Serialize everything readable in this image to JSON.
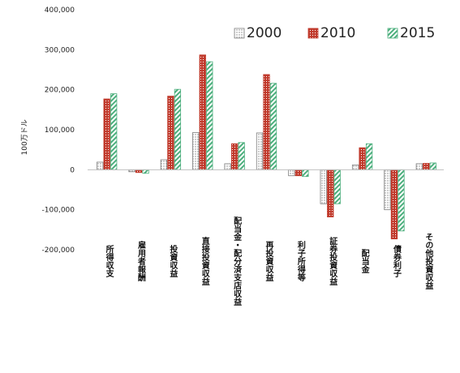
{
  "chart_data": {
    "type": "bar",
    "ylabel": "100万ドル",
    "ylim": [
      -200000,
      400000
    ],
    "y_ticks": [
      "400,000",
      "300,000",
      "200,000",
      "100,000",
      "0",
      "-100,000",
      "-200,000"
    ],
    "y_tick_values": [
      400000,
      300000,
      200000,
      100000,
      0,
      -100000,
      -200000
    ],
    "grid": false,
    "legend_position": "top-right",
    "categories": [
      "所得収支",
      "雇用者報酬",
      "投資収益",
      "直接投資収益",
      "配当金・配分済支店収益",
      "再投資収益",
      "利子所得等",
      "証券投資収益",
      "配当金",
      "債券利子",
      "その他投資収益"
    ],
    "series": [
      {
        "name": "2000",
        "color": "#7f7f7f",
        "pattern": "dots",
        "values": [
          19000,
          -5000,
          25000,
          93000,
          15000,
          92000,
          -15000,
          -85000,
          12000,
          -100000,
          15000
        ]
      },
      {
        "name": "2010",
        "color": "#c0392b",
        "pattern": "dense-dots",
        "values": [
          177000,
          -7000,
          184000,
          287000,
          65000,
          238000,
          -15000,
          -118000,
          55000,
          -173000,
          16000
        ]
      },
      {
        "name": "2015",
        "color": "#4caf7d",
        "pattern": "diagonal",
        "values": [
          190000,
          -9000,
          201000,
          270000,
          68000,
          216000,
          -17000,
          -85000,
          65000,
          -153000,
          17000
        ]
      }
    ]
  }
}
